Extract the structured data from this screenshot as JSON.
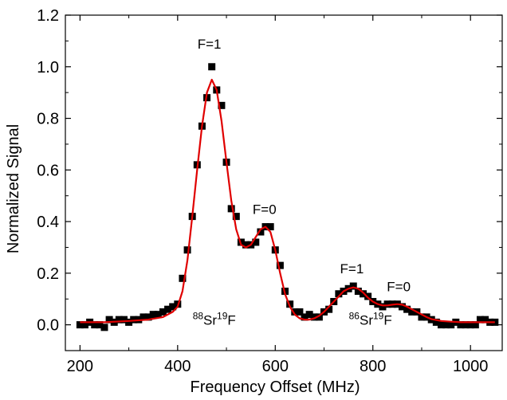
{
  "chart_data": {
    "type": "scatter",
    "title": "",
    "xlabel": "Frequency Offset (MHz)",
    "ylabel": "Normalized Signal",
    "xlim": [
      170,
      1065
    ],
    "ylim": [
      -0.1,
      1.2
    ],
    "grid": false,
    "x_ticks": [
      200,
      400,
      600,
      800,
      1000
    ],
    "y_ticks": [
      0.0,
      0.2,
      0.4,
      0.6,
      0.8,
      1.0,
      1.2
    ],
    "x_tick_labels": [
      "200",
      "400",
      "600",
      "800",
      "1000"
    ],
    "y_tick_labels": [
      "0.0",
      "0.2",
      "0.4",
      "0.6",
      "0.8",
      "1.0",
      "1.2"
    ],
    "marker_color": "#000000",
    "fit_color": "#e00000",
    "series": [
      {
        "type": "scatter",
        "marker": "square",
        "points": [
          [
            200,
            0.0
          ],
          [
            210,
            0.0
          ],
          [
            220,
            0.01
          ],
          [
            230,
            0.0
          ],
          [
            240,
            0.0
          ],
          [
            250,
            -0.01
          ],
          [
            260,
            0.02
          ],
          [
            270,
            0.01
          ],
          [
            280,
            0.02
          ],
          [
            290,
            0.02
          ],
          [
            300,
            0.01
          ],
          [
            310,
            0.02
          ],
          [
            320,
            0.02
          ],
          [
            330,
            0.03
          ],
          [
            340,
            0.03
          ],
          [
            350,
            0.04
          ],
          [
            360,
            0.04
          ],
          [
            370,
            0.05
          ],
          [
            380,
            0.06
          ],
          [
            390,
            0.07
          ],
          [
            400,
            0.08
          ],
          [
            410,
            0.18
          ],
          [
            420,
            0.29
          ],
          [
            430,
            0.42
          ],
          [
            440,
            0.62
          ],
          [
            450,
            0.77
          ],
          [
            460,
            0.88
          ],
          [
            470,
            1.0
          ],
          [
            480,
            0.91
          ],
          [
            490,
            0.85
          ],
          [
            500,
            0.63
          ],
          [
            510,
            0.45
          ],
          [
            520,
            0.42
          ],
          [
            530,
            0.32
          ],
          [
            540,
            0.31
          ],
          [
            550,
            0.31
          ],
          [
            560,
            0.32
          ],
          [
            570,
            0.36
          ],
          [
            580,
            0.38
          ],
          [
            590,
            0.38
          ],
          [
            600,
            0.29
          ],
          [
            610,
            0.23
          ],
          [
            620,
            0.13
          ],
          [
            630,
            0.08
          ],
          [
            640,
            0.05
          ],
          [
            650,
            0.05
          ],
          [
            660,
            0.03
          ],
          [
            670,
            0.04
          ],
          [
            680,
            0.03
          ],
          [
            690,
            0.03
          ],
          [
            700,
            0.05
          ],
          [
            710,
            0.06
          ],
          [
            720,
            0.09
          ],
          [
            730,
            0.12
          ],
          [
            740,
            0.13
          ],
          [
            750,
            0.14
          ],
          [
            760,
            0.15
          ],
          [
            770,
            0.13
          ],
          [
            780,
            0.12
          ],
          [
            790,
            0.11
          ],
          [
            800,
            0.09
          ],
          [
            810,
            0.08
          ],
          [
            820,
            0.07
          ],
          [
            830,
            0.08
          ],
          [
            840,
            0.08
          ],
          [
            850,
            0.08
          ],
          [
            860,
            0.07
          ],
          [
            870,
            0.06
          ],
          [
            880,
            0.05
          ],
          [
            890,
            0.05
          ],
          [
            900,
            0.03
          ],
          [
            910,
            0.03
          ],
          [
            920,
            0.02
          ],
          [
            930,
            0.01
          ],
          [
            940,
            0.0
          ],
          [
            950,
            0.0
          ],
          [
            960,
            0.0
          ],
          [
            970,
            0.01
          ],
          [
            980,
            0.0
          ],
          [
            990,
            0.0
          ],
          [
            1000,
            0.0
          ],
          [
            1010,
            0.0
          ],
          [
            1020,
            0.02
          ],
          [
            1030,
            0.02
          ],
          [
            1040,
            0.01
          ],
          [
            1050,
            0.01
          ]
        ]
      },
      {
        "type": "line",
        "points": [
          [
            200,
            0.01
          ],
          [
            250,
            0.01
          ],
          [
            300,
            0.015
          ],
          [
            340,
            0.02
          ],
          [
            370,
            0.03
          ],
          [
            390,
            0.05
          ],
          [
            400,
            0.07
          ],
          [
            410,
            0.13
          ],
          [
            420,
            0.25
          ],
          [
            430,
            0.42
          ],
          [
            440,
            0.6
          ],
          [
            450,
            0.77
          ],
          [
            460,
            0.9
          ],
          [
            470,
            0.95
          ],
          [
            480,
            0.91
          ],
          [
            490,
            0.79
          ],
          [
            500,
            0.63
          ],
          [
            510,
            0.48
          ],
          [
            520,
            0.37
          ],
          [
            530,
            0.31
          ],
          [
            540,
            0.3
          ],
          [
            550,
            0.31
          ],
          [
            560,
            0.34
          ],
          [
            570,
            0.37
          ],
          [
            580,
            0.38
          ],
          [
            590,
            0.36
          ],
          [
            600,
            0.29
          ],
          [
            610,
            0.2
          ],
          [
            620,
            0.12
          ],
          [
            630,
            0.07
          ],
          [
            640,
            0.04
          ],
          [
            650,
            0.025
          ],
          [
            660,
            0.02
          ],
          [
            670,
            0.02
          ],
          [
            680,
            0.025
          ],
          [
            690,
            0.035
          ],
          [
            700,
            0.05
          ],
          [
            710,
            0.07
          ],
          [
            720,
            0.09
          ],
          [
            730,
            0.11
          ],
          [
            740,
            0.13
          ],
          [
            750,
            0.14
          ],
          [
            760,
            0.145
          ],
          [
            770,
            0.14
          ],
          [
            780,
            0.125
          ],
          [
            790,
            0.105
          ],
          [
            800,
            0.09
          ],
          [
            810,
            0.08
          ],
          [
            820,
            0.075
          ],
          [
            830,
            0.075
          ],
          [
            840,
            0.078
          ],
          [
            850,
            0.08
          ],
          [
            860,
            0.078
          ],
          [
            870,
            0.07
          ],
          [
            880,
            0.06
          ],
          [
            890,
            0.05
          ],
          [
            900,
            0.04
          ],
          [
            910,
            0.03
          ],
          [
            920,
            0.022
          ],
          [
            940,
            0.015
          ],
          [
            960,
            0.012
          ],
          [
            980,
            0.01
          ],
          [
            1000,
            0.01
          ],
          [
            1020,
            0.01
          ],
          [
            1050,
            0.01
          ]
        ]
      }
    ],
    "annotations": [
      {
        "text": "F=1",
        "x": 465,
        "y": 1.07
      },
      {
        "text": "F=0",
        "x": 578,
        "y": 0.43
      },
      {
        "text": "F=1",
        "x": 757,
        "y": 0.2
      },
      {
        "text": "F=0",
        "x": 853,
        "y": 0.13
      }
    ],
    "isotope_labels": [
      {
        "mass": "88",
        "element": "Sr",
        "fluorine_mass": "19",
        "fluorine": "F",
        "x": 475,
        "y": 0.0
      },
      {
        "mass": "86",
        "element": "Sr",
        "fluorine_mass": "19",
        "fluorine": "F",
        "x": 795,
        "y": 0.0
      }
    ]
  }
}
